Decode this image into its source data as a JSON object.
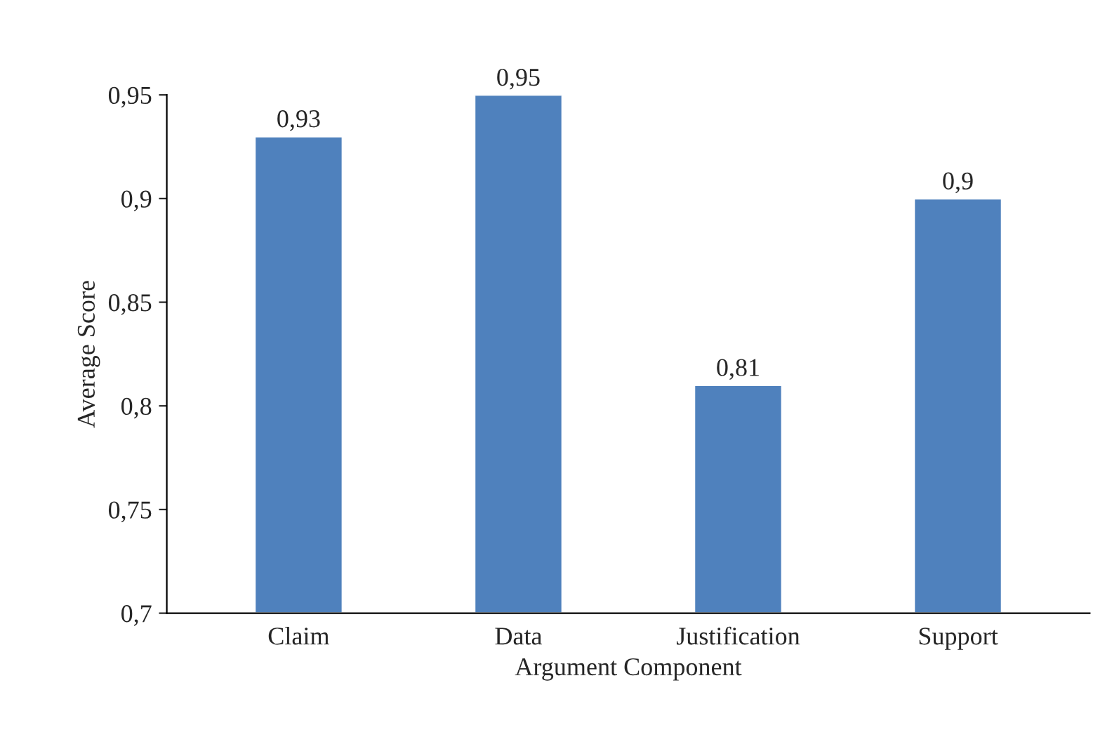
{
  "chart_data": {
    "type": "bar",
    "xlabel": "Argument Component",
    "ylabel": "Average Score",
    "categories": [
      "Claim",
      "Data",
      "Justification",
      "Support"
    ],
    "values": [
      0.93,
      0.95,
      0.81,
      0.9
    ],
    "value_labels": [
      "0,93",
      "0,95",
      "0,81",
      "0,9"
    ],
    "color": "#4f81bd",
    "ylim": [
      0.7,
      0.95
    ],
    "yticks": [
      {
        "value": 0.7,
        "label": "0,7"
      },
      {
        "value": 0.75,
        "label": "0,75"
      },
      {
        "value": 0.8,
        "label": "0,8"
      },
      {
        "value": 0.85,
        "label": "0,85"
      },
      {
        "value": 0.9,
        "label": "0,9"
      },
      {
        "value": 0.95,
        "label": "0,95"
      }
    ],
    "grid": false,
    "legend": false
  }
}
